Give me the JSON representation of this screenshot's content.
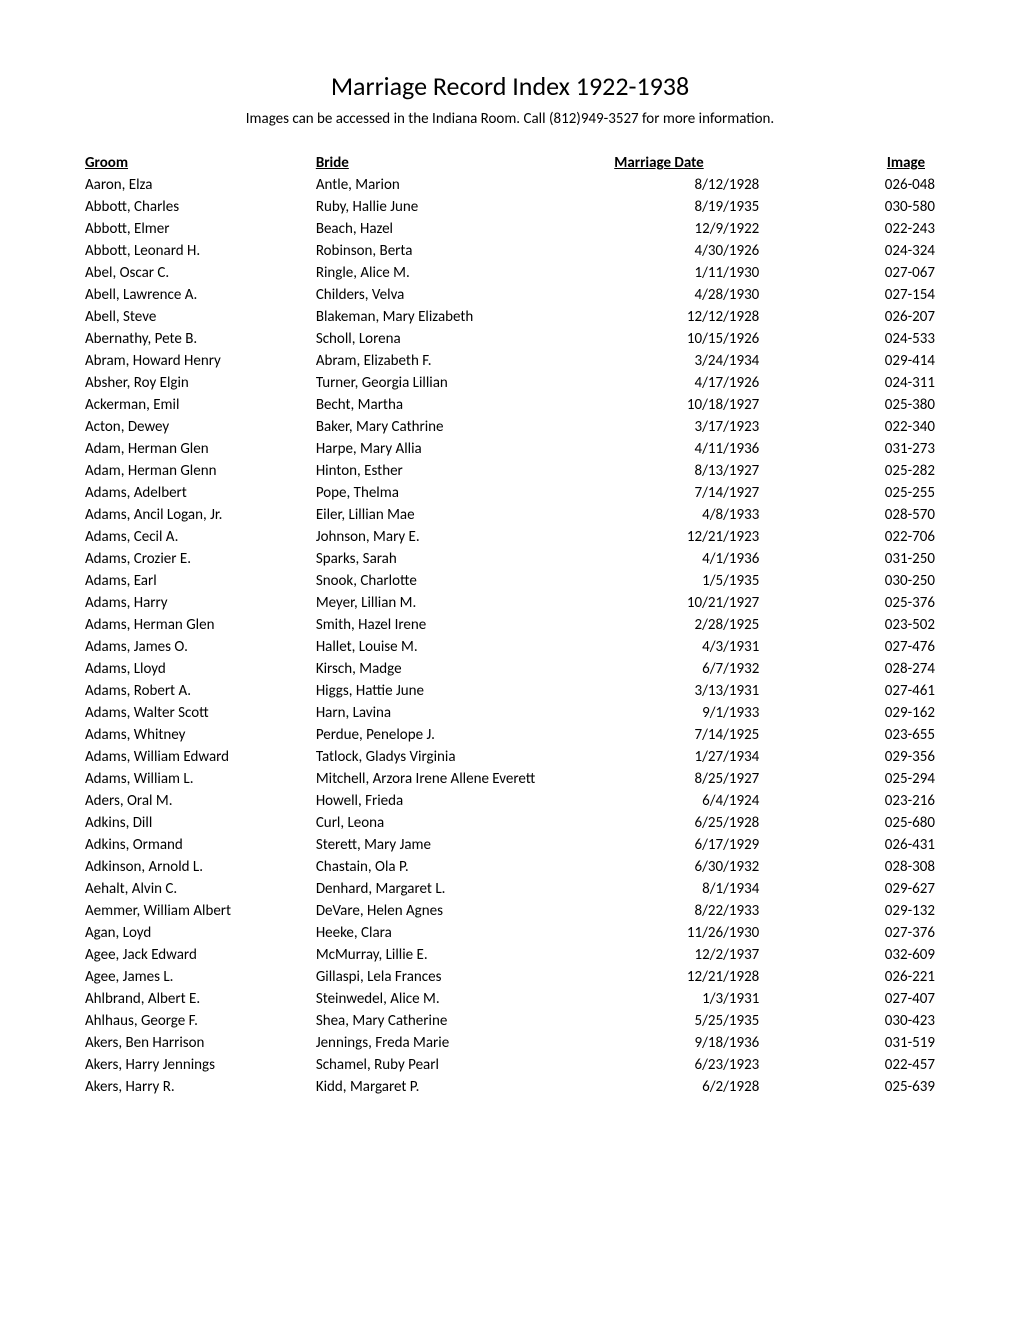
{
  "title": "Marriage Record Index 1922-1938",
  "subtitle": "Images can be accessed in the Indiana Room. Call (812)949-3527 for more information.",
  "columns": {
    "groom": "Groom",
    "bride": "Bride",
    "marriage_date": "Marriage Date",
    "image": "Image"
  },
  "rows": [
    {
      "groom": "Aaron, Elza",
      "bride": "Antle, Marion",
      "date": "8/12/1928",
      "image": "026-048"
    },
    {
      "groom": "Abbott, Charles",
      "bride": "Ruby, Hallie June",
      "date": "8/19/1935",
      "image": "030-580"
    },
    {
      "groom": "Abbott, Elmer",
      "bride": "Beach, Hazel",
      "date": "12/9/1922",
      "image": "022-243"
    },
    {
      "groom": "Abbott, Leonard H.",
      "bride": "Robinson, Berta",
      "date": "4/30/1926",
      "image": "024-324"
    },
    {
      "groom": "Abel, Oscar C.",
      "bride": "Ringle, Alice M.",
      "date": "1/11/1930",
      "image": "027-067"
    },
    {
      "groom": "Abell, Lawrence A.",
      "bride": "Childers, Velva",
      "date": "4/28/1930",
      "image": "027-154"
    },
    {
      "groom": "Abell, Steve",
      "bride": "Blakeman, Mary Elizabeth",
      "date": "12/12/1928",
      "image": "026-207"
    },
    {
      "groom": "Abernathy, Pete B.",
      "bride": "Scholl, Lorena",
      "date": "10/15/1926",
      "image": "024-533"
    },
    {
      "groom": "Abram, Howard Henry",
      "bride": "Abram, Elizabeth F.",
      "date": "3/24/1934",
      "image": "029-414"
    },
    {
      "groom": "Absher, Roy Elgin",
      "bride": "Turner, Georgia Lillian",
      "date": "4/17/1926",
      "image": "024-311"
    },
    {
      "groom": "Ackerman, Emil",
      "bride": "Becht, Martha",
      "date": "10/18/1927",
      "image": "025-380"
    },
    {
      "groom": "Acton, Dewey",
      "bride": "Baker, Mary Cathrine",
      "date": "3/17/1923",
      "image": "022-340"
    },
    {
      "groom": "Adam, Herman Glen",
      "bride": "Harpe, Mary Allia",
      "date": "4/11/1936",
      "image": "031-273"
    },
    {
      "groom": "Adam, Herman Glenn",
      "bride": "Hinton, Esther",
      "date": "8/13/1927",
      "image": "025-282"
    },
    {
      "groom": "Adams, Adelbert",
      "bride": "Pope, Thelma",
      "date": "7/14/1927",
      "image": "025-255"
    },
    {
      "groom": "Adams, Ancil Logan, Jr.",
      "bride": "Eiler, Lillian Mae",
      "date": "4/8/1933",
      "image": "028-570"
    },
    {
      "groom": "Adams, Cecil A.",
      "bride": "Johnson, Mary E.",
      "date": "12/21/1923",
      "image": "022-706"
    },
    {
      "groom": "Adams, Crozier E.",
      "bride": "Sparks, Sarah",
      "date": "4/1/1936",
      "image": "031-250"
    },
    {
      "groom": "Adams, Earl",
      "bride": "Snook, Charlotte",
      "date": "1/5/1935",
      "image": "030-250"
    },
    {
      "groom": "Adams, Harry",
      "bride": "Meyer, Lillian M.",
      "date": "10/21/1927",
      "image": "025-376"
    },
    {
      "groom": "Adams, Herman Glen",
      "bride": "Smith, Hazel Irene",
      "date": "2/28/1925",
      "image": "023-502"
    },
    {
      "groom": "Adams, James O.",
      "bride": "Hallet, Louise M.",
      "date": "4/3/1931",
      "image": "027-476"
    },
    {
      "groom": "Adams, Lloyd",
      "bride": "Kirsch, Madge",
      "date": "6/7/1932",
      "image": "028-274"
    },
    {
      "groom": "Adams, Robert A.",
      "bride": "Higgs, Hattie June",
      "date": "3/13/1931",
      "image": "027-461"
    },
    {
      "groom": "Adams, Walter Scott",
      "bride": "Harn, Lavina",
      "date": "9/1/1933",
      "image": "029-162"
    },
    {
      "groom": "Adams, Whitney",
      "bride": "Perdue, Penelope J.",
      "date": "7/14/1925",
      "image": "023-655"
    },
    {
      "groom": "Adams, William Edward",
      "bride": "Tatlock, Gladys Virginia",
      "date": "1/27/1934",
      "image": "029-356"
    },
    {
      "groom": "Adams, William L.",
      "bride": "Mitchell, Arzora Irene Allene Everett",
      "date": "8/25/1927",
      "image": "025-294"
    },
    {
      "groom": "Aders, Oral M.",
      "bride": "Howell, Frieda",
      "date": "6/4/1924",
      "image": "023-216"
    },
    {
      "groom": "Adkins, Dill",
      "bride": "Curl, Leona",
      "date": "6/25/1928",
      "image": "025-680"
    },
    {
      "groom": "Adkins, Ormand",
      "bride": "Sterett, Mary Jame",
      "date": "6/17/1929",
      "image": "026-431"
    },
    {
      "groom": "Adkinson, Arnold L.",
      "bride": "Chastain, Ola P.",
      "date": "6/30/1932",
      "image": "028-308"
    },
    {
      "groom": "Aehalt, Alvin C.",
      "bride": "Denhard, Margaret L.",
      "date": "8/1/1934",
      "image": "029-627"
    },
    {
      "groom": "Aemmer, William Albert",
      "bride": "DeVare, Helen Agnes",
      "date": "8/22/1933",
      "image": "029-132"
    },
    {
      "groom": "Agan, Loyd",
      "bride": "Heeke, Clara",
      "date": "11/26/1930",
      "image": "027-376"
    },
    {
      "groom": "Agee, Jack Edward",
      "bride": "McMurray, Lillie E.",
      "date": "12/2/1937",
      "image": "032-609"
    },
    {
      "groom": "Agee, James L.",
      "bride": "Gillaspi, Lela Frances",
      "date": "12/21/1928",
      "image": "026-221"
    },
    {
      "groom": "Ahlbrand, Albert E.",
      "bride": "Steinwedel, Alice M.",
      "date": "1/3/1931",
      "image": "027-407"
    },
    {
      "groom": "Ahlhaus, George F.",
      "bride": "Shea, Mary Catherine",
      "date": "5/25/1935",
      "image": "030-423"
    },
    {
      "groom": "Akers, Ben Harrison",
      "bride": "Jennings, Freda Marie",
      "date": "9/18/1936",
      "image": "031-519"
    },
    {
      "groom": "Akers, Harry Jennings",
      "bride": "Schamel, Ruby Pearl",
      "date": "6/23/1923",
      "image": "022-457"
    },
    {
      "groom": "Akers, Harry R.",
      "bride": "Kidd, Margaret P.",
      "date": "6/2/1928",
      "image": "025-639"
    }
  ],
  "styling": {
    "background_color": "#ffffff",
    "text_color": "#000000",
    "title_fontsize": 26,
    "body_fontsize": 15,
    "font_family": "Calibri"
  }
}
